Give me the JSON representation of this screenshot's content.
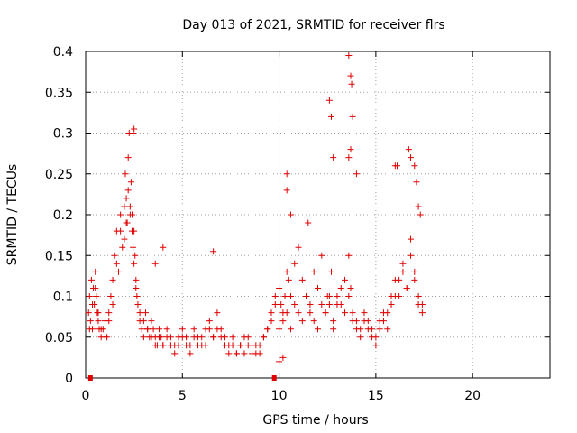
{
  "chart_data": {
    "type": "scatter",
    "title": "Day 013 of 2021, SRMTID for receiver flrs",
    "xlabel": "GPS time / hours",
    "ylabel": "SRMTID / TECUs",
    "xlim": [
      0,
      24
    ],
    "ylim": [
      0,
      0.4
    ],
    "x_ticks": [
      "0",
      "5",
      "10",
      "15",
      "20"
    ],
    "y_ticks": [
      "0",
      "0.05",
      "0.1",
      "0.15",
      "0.2",
      "0.25",
      "0.3",
      "0.35",
      "0.4"
    ],
    "grid": true,
    "marker": "+",
    "color": "#e00000",
    "series": [
      {
        "x": [
          0.15,
          0.2,
          0.25,
          0.3,
          0.35,
          0.4,
          0.45,
          0.5,
          0.55,
          0.6,
          0.65,
          0.7,
          0.8,
          0.9,
          1.0,
          1.1,
          1.2,
          1.3,
          1.4,
          1.5,
          1.6,
          1.7,
          1.8,
          1.9,
          2.0,
          2.05,
          2.1,
          2.15,
          2.2,
          2.25,
          2.3,
          2.35,
          2.4,
          2.45,
          2.5,
          2.55,
          2.6,
          2.65,
          2.7,
          2.8,
          2.9,
          3.0,
          3.1,
          3.2,
          3.3,
          3.4,
          3.5,
          3.6,
          3.7,
          3.8,
          3.9,
          4.0,
          4.2,
          4.4,
          4.6,
          4.8,
          5.0,
          5.2,
          5.4,
          5.6,
          5.8,
          6.0,
          6.2,
          6.4,
          6.6,
          6.8,
          7.0,
          7.2,
          7.4,
          7.6,
          7.8,
          8.0,
          8.2,
          8.4,
          8.6,
          8.8,
          9.0,
          9.2,
          9.4,
          9.6,
          9.8,
          10.0,
          10.1,
          10.2,
          10.3,
          10.4,
          10.5,
          10.6,
          10.8,
          11.0,
          11.2,
          11.4,
          11.6,
          11.8,
          12.0,
          12.2,
          12.4,
          12.5,
          12.6,
          12.7,
          12.8,
          13.0,
          13.2,
          13.4,
          13.6,
          13.7,
          13.8,
          14.0,
          14.2,
          14.4,
          14.6,
          14.8,
          15.0,
          15.2,
          15.4,
          15.6,
          15.8,
          16.0,
          16.2,
          16.4,
          16.6,
          16.8,
          17.0,
          17.2,
          17.4
        ],
        "y": [
          0.08,
          0.1,
          0.07,
          0.12,
          0.06,
          0.11,
          0.09,
          0.13,
          0.1,
          0.08,
          0.07,
          0.06,
          0.05,
          0.06,
          0.07,
          0.05,
          0.08,
          0.1,
          0.12,
          0.15,
          0.18,
          0.13,
          0.2,
          0.16,
          0.17,
          0.25,
          0.22,
          0.19,
          0.27,
          0.3,
          0.21,
          0.24,
          0.2,
          0.16,
          0.18,
          0.15,
          0.12,
          0.1,
          0.09,
          0.07,
          0.06,
          0.05,
          0.08,
          0.06,
          0.05,
          0.07,
          0.06,
          0.05,
          0.04,
          0.06,
          0.05,
          0.04,
          0.06,
          0.05,
          0.04,
          0.05,
          0.06,
          0.05,
          0.04,
          0.06,
          0.05,
          0.04,
          0.06,
          0.07,
          0.05,
          0.08,
          0.06,
          0.05,
          0.04,
          0.05,
          0.03,
          0.04,
          0.05,
          0.04,
          0.03,
          0.04,
          0.03,
          0.05,
          0.06,
          0.08,
          0.1,
          0.11,
          0.09,
          0.08,
          0.1,
          0.13,
          0.12,
          0.1,
          0.14,
          0.16,
          0.12,
          0.1,
          0.09,
          0.13,
          0.11,
          0.15,
          0.08,
          0.1,
          0.09,
          0.13,
          0.06,
          0.1,
          0.09,
          0.12,
          0.15,
          0.11,
          0.08,
          0.07,
          0.06,
          0.08,
          0.07,
          0.06,
          0.05,
          0.07,
          0.08,
          0.06,
          0.09,
          0.1,
          0.12,
          0.14,
          0.11,
          0.17,
          0.13,
          0.09,
          0.08
        ],
        "x2": [
          0.2,
          0.35,
          0.5,
          0.65,
          0.8,
          1.0,
          1.2,
          1.4,
          1.6,
          1.8,
          2.0,
          2.1,
          2.2,
          2.3,
          2.4,
          2.5,
          2.6,
          2.8,
          3.0,
          3.2,
          3.4,
          3.6,
          3.8,
          4.0,
          4.2,
          4.4,
          4.6,
          4.8,
          5.0,
          5.2,
          5.4,
          5.6,
          5.8,
          6.0,
          6.2,
          6.4,
          6.6,
          6.8,
          7.0,
          7.2,
          7.4,
          7.6,
          7.8,
          8.0,
          8.2,
          8.4,
          8.6,
          8.8,
          9.0,
          9.2,
          9.4,
          9.6,
          9.8,
          10.0,
          10.2,
          10.4,
          10.6,
          10.8,
          11.0,
          11.2,
          11.4,
          11.6,
          11.8,
          12.0,
          12.2,
          12.4,
          12.6,
          12.8,
          13.0,
          13.2,
          13.4,
          13.6,
          13.8,
          14.0,
          14.2,
          14.4,
          14.6,
          14.8,
          15.0,
          15.2,
          15.4,
          15.6,
          15.8,
          16.0,
          16.2,
          16.4,
          16.6,
          16.8,
          17.0,
          17.2,
          17.4
        ],
        "y2": [
          0.06,
          0.09,
          0.11,
          0.08,
          0.06,
          0.05,
          0.07,
          0.09,
          0.14,
          0.18,
          0.21,
          0.19,
          0.23,
          0.2,
          0.18,
          0.14,
          0.11,
          0.08,
          0.07,
          0.06,
          0.05,
          0.04,
          0.05,
          0.04,
          0.05,
          0.04,
          0.03,
          0.04,
          0.05,
          0.04,
          0.03,
          0.05,
          0.04,
          0.05,
          0.04,
          0.06,
          0.05,
          0.06,
          0.05,
          0.04,
          0.03,
          0.04,
          0.03,
          0.04,
          0.03,
          0.05,
          0.04,
          0.03,
          0.04,
          0.05,
          0.06,
          0.07,
          0.09,
          0.06,
          0.07,
          0.08,
          0.06,
          0.09,
          0.08,
          0.07,
          0.1,
          0.08,
          0.07,
          0.06,
          0.09,
          0.08,
          0.1,
          0.07,
          0.09,
          0.11,
          0.08,
          0.1,
          0.07,
          0.06,
          0.05,
          0.07,
          0.06,
          0.05,
          0.04,
          0.06,
          0.07,
          0.08,
          0.1,
          0.12,
          0.1,
          0.13,
          0.11,
          0.15,
          0.12,
          0.1,
          0.09
        ],
        "extreme_x": [
          2.45,
          2.5,
          12.6,
          12.7,
          13.6,
          13.7,
          13.75,
          13.8,
          13.7,
          13.6,
          10.4,
          10.4,
          11.5,
          12.8,
          14.0,
          16.0,
          16.1,
          16.7,
          16.8,
          17.0,
          17.1,
          17.2,
          17.3,
          10.6,
          10.0,
          10.2,
          6.6,
          4.0,
          3.6
        ],
        "extreme_y": [
          0.3,
          0.305,
          0.34,
          0.32,
          0.395,
          0.37,
          0.36,
          0.32,
          0.28,
          0.27,
          0.25,
          0.23,
          0.19,
          0.27,
          0.25,
          0.26,
          0.26,
          0.28,
          0.27,
          0.26,
          0.24,
          0.21,
          0.2,
          0.2,
          0.02,
          0.025,
          0.155,
          0.16,
          0.14
        ],
        "baseline_x": [
          0.25,
          9.75
        ],
        "baseline_y": [
          0,
          0
        ]
      }
    ]
  }
}
